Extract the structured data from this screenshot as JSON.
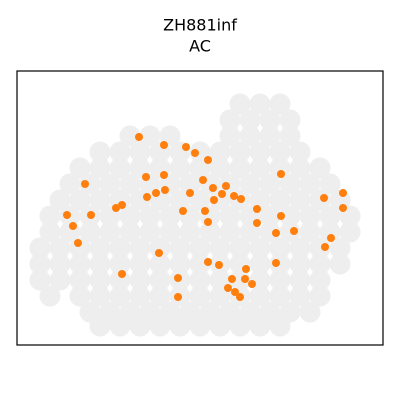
{
  "chart_data": {
    "type": "scatter",
    "title": "ZH881inf",
    "subtitle": "AC",
    "xlim": [
      17,
      383
    ],
    "ylim": [
      345,
      71
    ],
    "series": [
      {
        "color": "#eeeeee",
        "x": [
          240,
          260,
          280,
          230,
          250,
          270,
          290,
          130,
          150,
          170,
          230,
          250,
          270,
          290,
          100,
          120,
          140,
          160,
          180,
          200,
          220,
          240,
          260,
          280,
          300,
          80,
          100,
          120,
          140,
          160,
          180,
          200,
          220,
          240,
          260,
          280,
          300,
          320,
          70,
          90,
          110,
          130,
          150,
          170,
          190,
          210,
          230,
          250,
          270,
          290,
          310,
          330,
          60,
          80,
          100,
          120,
          140,
          160,
          180,
          200,
          220,
          240,
          260,
          280,
          300,
          320,
          340,
          50,
          70,
          90,
          110,
          130,
          150,
          170,
          190,
          210,
          230,
          250,
          270,
          290,
          310,
          330,
          350,
          50,
          70,
          90,
          110,
          130,
          150,
          170,
          190,
          210,
          230,
          250,
          270,
          290,
          310,
          330,
          350,
          40,
          60,
          80,
          100,
          120,
          140,
          160,
          180,
          200,
          220,
          240,
          260,
          280,
          300,
          320,
          340,
          40,
          60,
          80,
          100,
          120,
          140,
          160,
          180,
          200,
          220,
          240,
          260,
          280,
          300,
          320,
          340,
          40,
          60,
          80,
          100,
          120,
          140,
          160,
          180,
          200,
          220,
          240,
          260,
          280,
          300,
          320,
          50,
          80,
          100,
          120,
          140,
          160,
          180,
          200,
          220,
          240,
          260,
          280,
          300,
          320,
          90,
          110,
          130,
          150,
          170,
          190,
          210,
          230,
          250,
          270,
          290,
          310,
          100,
          120,
          140,
          160,
          180,
          200,
          220,
          240,
          260,
          280
        ],
        "y": [
          104,
          104,
          104,
          120,
          120,
          120,
          120,
          136,
          136,
          136,
          136,
          136,
          136,
          136,
          152,
          152,
          152,
          152,
          152,
          152,
          152,
          152,
          152,
          152,
          152,
          168,
          168,
          168,
          168,
          168,
          168,
          168,
          168,
          168,
          168,
          168,
          168,
          168,
          184,
          184,
          184,
          184,
          184,
          184,
          184,
          184,
          184,
          184,
          184,
          184,
          184,
          184,
          200,
          200,
          200,
          200,
          200,
          200,
          200,
          200,
          200,
          200,
          200,
          200,
          200,
          200,
          200,
          216,
          216,
          216,
          216,
          216,
          216,
          216,
          216,
          216,
          216,
          216,
          216,
          216,
          216,
          216,
          216,
          232,
          232,
          232,
          232,
          232,
          232,
          232,
          232,
          232,
          232,
          232,
          232,
          232,
          232,
          232,
          232,
          248,
          248,
          248,
          248,
          248,
          248,
          248,
          248,
          248,
          248,
          248,
          248,
          248,
          248,
          248,
          248,
          264,
          264,
          264,
          264,
          264,
          264,
          264,
          264,
          264,
          264,
          264,
          264,
          264,
          264,
          264,
          264,
          280,
          280,
          280,
          280,
          280,
          280,
          280,
          280,
          280,
          280,
          280,
          280,
          280,
          280,
          280,
          296,
          296,
          296,
          296,
          296,
          296,
          296,
          296,
          296,
          296,
          296,
          296,
          296,
          296,
          312,
          312,
          312,
          312,
          312,
          312,
          312,
          312,
          312,
          312,
          312,
          312,
          326,
          326,
          326,
          326,
          326,
          326,
          326,
          326,
          326,
          326
        ]
      },
      {
        "color": "#ff7f0e",
        "x": [
          139,
          164,
          186,
          195,
          208,
          85,
          146,
          164,
          203,
          226,
          213,
          281,
          147,
          156,
          165,
          190,
          234,
          241,
          222,
          214,
          343,
          324,
          122,
          116,
          183,
          205,
          67,
          91,
          73,
          257,
          281,
          343,
          257,
          208,
          276,
          294,
          331,
          78,
          159,
          325,
          208,
          219,
          246,
          276,
          122,
          178,
          232,
          245,
          252,
          228,
          235,
          178,
          240
        ],
        "y": [
          137,
          145,
          147,
          153,
          160,
          184,
          177,
          175,
          180,
          186,
          188,
          174,
          197,
          193,
          190,
          193,
          196,
          199,
          194,
          200,
          193,
          198,
          205,
          208,
          211,
          211,
          215,
          215,
          226,
          209,
          216,
          208,
          223,
          222,
          233,
          231,
          238,
          243,
          253,
          247,
          262,
          265,
          269,
          263,
          274,
          278,
          279,
          279,
          284,
          288,
          292,
          297,
          297
        ]
      }
    ]
  }
}
